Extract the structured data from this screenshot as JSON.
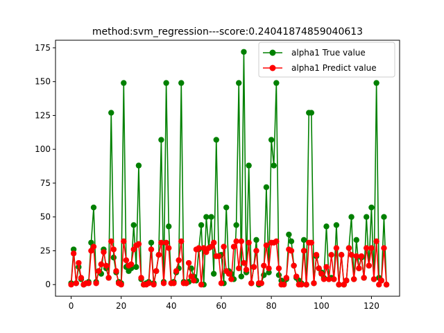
{
  "chart_data": {
    "type": "line",
    "title": "method:svm_regression---score:0.24041874859040613",
    "xlabel": "",
    "ylabel": "",
    "xlim": [
      -6.25,
      131.25
    ],
    "ylim": [
      -8.6,
      180.6
    ],
    "xticks": [
      0,
      20,
      40,
      60,
      80,
      100,
      120
    ],
    "yticks": [
      0,
      25,
      50,
      75,
      100,
      125,
      150,
      175
    ],
    "grid": false,
    "legend_position": "top-right",
    "series": [
      {
        "name": "alpha1 True value",
        "color": "#008000",
        "marker": "circle",
        "values": [
          1,
          26,
          1,
          13,
          4,
          0,
          1,
          2,
          31,
          57,
          2,
          10,
          8,
          26,
          12,
          5,
          127,
          20,
          9,
          2,
          1,
          149,
          13,
          10,
          12,
          44,
          13,
          88,
          4,
          0,
          1,
          2,
          31,
          1,
          10,
          22,
          107,
          2,
          149,
          43,
          1,
          2,
          9,
          12,
          149,
          2,
          1,
          2,
          12,
          6,
          3,
          26,
          44,
          0,
          50,
          27,
          50,
          8,
          107,
          21,
          22,
          1,
          57,
          10,
          8,
          4,
          44,
          149,
          6,
          172,
          9,
          88,
          1,
          13,
          33,
          0,
          1,
          7,
          72,
          9,
          107,
          88,
          149,
          7,
          3,
          1,
          4,
          37,
          32,
          14,
          5,
          3,
          1,
          33,
          0,
          127,
          127,
          1,
          21,
          12,
          9,
          5,
          43,
          4,
          5,
          4,
          44,
          0,
          22,
          0,
          3,
          27,
          50,
          4,
          33,
          12,
          20,
          5,
          50,
          14,
          57,
          4,
          149,
          5,
          3,
          50,
          0
        ]
      },
      {
        "name": "alpha1 Predict value",
        "color": "#ff0000",
        "marker": "circle",
        "values": [
          0,
          23,
          1,
          16,
          5,
          0,
          1,
          1,
          25,
          28,
          1,
          10,
          15,
          24,
          14,
          5,
          32,
          26,
          10,
          1,
          0,
          32,
          18,
          14,
          15,
          26,
          29,
          30,
          5,
          0,
          0,
          1,
          26,
          0,
          10,
          22,
          31,
          1,
          31,
          27,
          1,
          1,
          10,
          18,
          32,
          1,
          1,
          16,
          6,
          3,
          26,
          27,
          0,
          27,
          24,
          27,
          28,
          31,
          21,
          21,
          1,
          28,
          10,
          8,
          4,
          28,
          32,
          12,
          32,
          16,
          11,
          31,
          1,
          13,
          25,
          1,
          1,
          14,
          29,
          12,
          31,
          31,
          32,
          12,
          0,
          0,
          5,
          26,
          25,
          14,
          6,
          0,
          0,
          25,
          0,
          31,
          31,
          1,
          22,
          12,
          8,
          4,
          13,
          4,
          22,
          4,
          27,
          0,
          22,
          0,
          3,
          27,
          22,
          4,
          21,
          12,
          21,
          5,
          27,
          14,
          27,
          4,
          32,
          0,
          3,
          27,
          0
        ]
      }
    ]
  }
}
